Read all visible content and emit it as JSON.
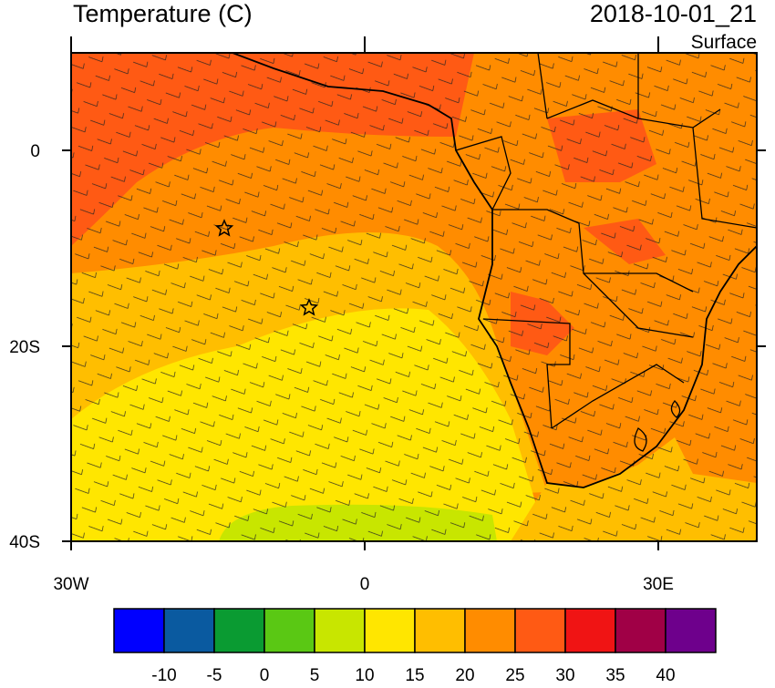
{
  "header": {
    "title": "Temperature (C)",
    "time": "2018-10-01_21",
    "level": "Surface"
  },
  "map": {
    "lat_labels": [
      "0",
      "20S",
      "40S"
    ],
    "lon_labels": [
      "30W",
      "0",
      "30E"
    ]
  },
  "colorbar": {
    "colors": [
      "#0000ff",
      "#0a5aa0",
      "#0a9b32",
      "#5ac814",
      "#c8e600",
      "#ffe600",
      "#ffbe00",
      "#ff8c00",
      "#ff5a14",
      "#f01414",
      "#a00046",
      "#6e008c"
    ],
    "levels": [
      -10,
      -5,
      0,
      5,
      10,
      15,
      20,
      25,
      30,
      35,
      40
    ]
  }
}
